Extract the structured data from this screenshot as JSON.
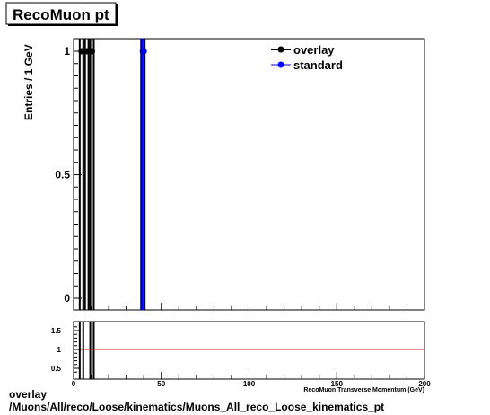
{
  "chart_data": [
    {
      "type": "scatter",
      "title": "RecoMuon pt",
      "ylabel": "Entries / 1 GeV",
      "xlim": [
        0,
        200
      ],
      "ylim": [
        0,
        1.05
      ],
      "yticks": [
        {
          "value": 0,
          "label": "0"
        },
        {
          "value": 0.5,
          "label": "0.5"
        },
        {
          "value": 1,
          "label": "1"
        }
      ],
      "legend_position": "top-right",
      "series": [
        {
          "name": "overlay",
          "color": "#000000",
          "x": [
            4.5,
            7.5,
            10.5,
            39.5
          ],
          "y": [
            1,
            1,
            1,
            1
          ]
        },
        {
          "name": "standard",
          "color": "#0000ff",
          "x": [
            39.5
          ],
          "y": [
            1
          ]
        }
      ],
      "vertical_lines": [
        {
          "x": 3.5,
          "color": "#000000"
        },
        {
          "x": 5.5,
          "color": "#000000"
        },
        {
          "x": 6.5,
          "color": "#000000"
        },
        {
          "x": 8.5,
          "color": "#000000"
        },
        {
          "x": 9.5,
          "color": "#000000"
        },
        {
          "x": 11.5,
          "color": "#000000"
        },
        {
          "x": 38.5,
          "color": "#000000"
        },
        {
          "x": 40.5,
          "color": "#000000"
        },
        {
          "x": 39.0,
          "color": "#0000ff"
        },
        {
          "x": 40.0,
          "color": "#0000ff"
        }
      ]
    },
    {
      "type": "line",
      "xlabel": "RecoMuon Transverse Momentum (GeV)",
      "xlim": [
        0,
        200
      ],
      "ylim": [
        0.3,
        1.7
      ],
      "xticks": [
        {
          "value": 0,
          "label": "0"
        },
        {
          "value": 50,
          "label": "50"
        },
        {
          "value": 100,
          "label": "100"
        },
        {
          "value": 150,
          "label": "150"
        },
        {
          "value": 200,
          "label": "200"
        }
      ],
      "yticks": [
        {
          "value": 0.5,
          "label": "0.5"
        },
        {
          "value": 1,
          "label": "1"
        },
        {
          "value": 1.5,
          "label": "1.5"
        }
      ],
      "reference_line": {
        "y": 1,
        "color": "#cc2222"
      },
      "vertical_lines": [
        {
          "x": 3.5,
          "color": "#000000"
        },
        {
          "x": 5.5,
          "color": "#000000"
        },
        {
          "x": 9.5,
          "color": "#000000"
        },
        {
          "x": 11.5,
          "color": "#000000"
        }
      ]
    }
  ],
  "footer": {
    "line1": "overlay",
    "line2": "/Muons/All/reco/Loose/kinematics/Muons_All_reco_Loose_kinematics_pt"
  }
}
